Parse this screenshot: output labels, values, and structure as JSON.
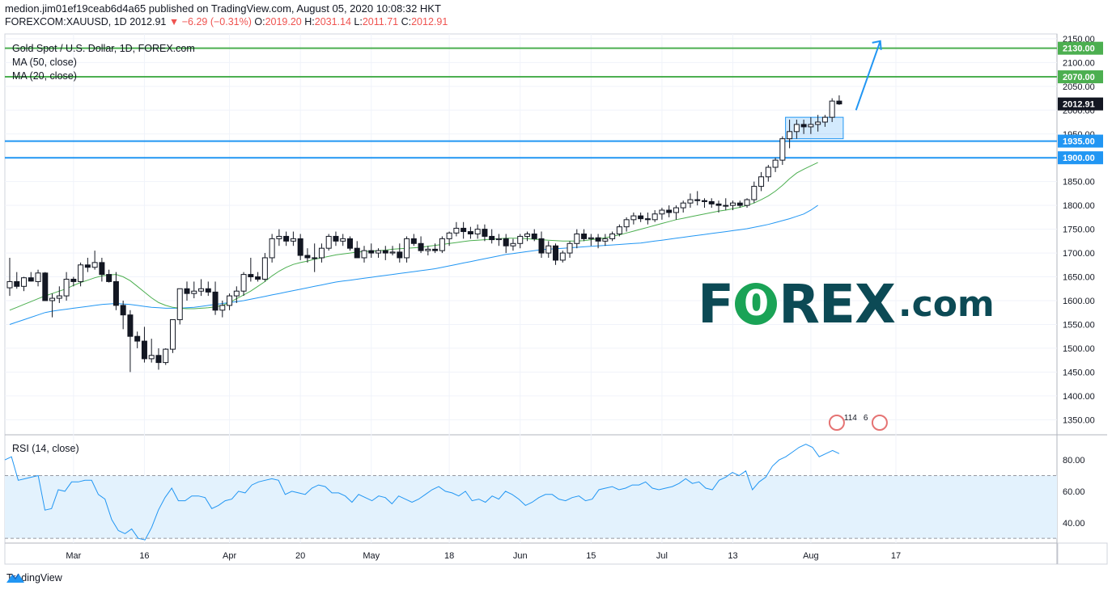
{
  "header": {
    "published": "medion.jim01ef19ceab6d4a65 published on TradingView.com, August 05, 2020 10:08:32 HKT",
    "symbol": "FOREXCOM:XAUUSD, 1D",
    "price": "2012.91",
    "change": "▼ −6.29 (−0.31%)",
    "o_label": "O:",
    "o_value": "2019.20",
    "h_label": "H:",
    "h_value": "2031.14",
    "l_label": "L:",
    "l_value": "2011.71",
    "c_label": "C:",
    "c_value": "2012.91"
  },
  "legend": {
    "title": "Gold Spot / U.S. Dollar, 1D, FOREX.com",
    "ma50": "MA (50, close)",
    "ma20": "MA (20, close)"
  },
  "rsi_label": "RSI (14, close)",
  "watermark": {
    "brand_left": "F",
    "brand_o": "0",
    "brand_right": "REX",
    "brand_suffix": ".com"
  },
  "footer": {
    "brand": "TradingView"
  },
  "event_badges": {
    "left_count": "114",
    "right_count": "6"
  },
  "colors": {
    "up": "#ffffff",
    "down": "#131722",
    "ma50": "#2196f3",
    "ma20": "#4caf50",
    "support": "#2196f3",
    "resistance": "#4caf50",
    "rsi": "#2196f3",
    "rsi_band": "#e3f2fd"
  },
  "chart_data": [
    {
      "type": "candlestick",
      "title": "Gold Spot / U.S. Dollar, 1D, FOREX.com",
      "ylim": [
        1320,
        2160
      ],
      "y_ticks": [
        1350,
        1400,
        1450,
        1500,
        1550,
        1600,
        1650,
        1700,
        1750,
        1800,
        1850,
        1900,
        1950,
        2000,
        2050,
        2100,
        2150
      ],
      "y_tick_labels": [
        "1350.00",
        "1400.00",
        "1450.00",
        "1500.00",
        "1550.00",
        "1600.00",
        "1650.00",
        "1700.00",
        "1750.00",
        "1800.00",
        "1850.00",
        "1900.00",
        "1950.00",
        "2000.00",
        "2050.00",
        "2100.00",
        "2150.00"
      ],
      "x_tick_labels": [
        "Mar",
        "16",
        "Apr",
        "20",
        "May",
        "18",
        "Jun",
        "15",
        "Jul",
        "13",
        "Aug",
        "17"
      ],
      "x_tick_index": [
        9,
        19,
        31,
        41,
        51,
        62,
        72,
        82,
        92,
        102,
        113,
        125
      ],
      "candles": [
        [
          1627,
          1690,
          1610,
          1640
        ],
        [
          1640,
          1660,
          1625,
          1630
        ],
        [
          1630,
          1650,
          1620,
          1648
        ],
        [
          1648,
          1660,
          1640,
          1641
        ],
        [
          1640,
          1665,
          1630,
          1658
        ],
        [
          1658,
          1660,
          1600,
          1600
        ],
        [
          1600,
          1615,
          1565,
          1605
        ],
        [
          1605,
          1630,
          1595,
          1610
        ],
        [
          1610,
          1660,
          1600,
          1645
        ],
        [
          1645,
          1650,
          1630,
          1640
        ],
        [
          1640,
          1680,
          1630,
          1675
        ],
        [
          1675,
          1690,
          1660,
          1670
        ],
        [
          1670,
          1705,
          1665,
          1680
        ],
        [
          1680,
          1690,
          1640,
          1655
        ],
        [
          1655,
          1665,
          1638,
          1640
        ],
        [
          1640,
          1660,
          1580,
          1590
        ],
        [
          1590,
          1600,
          1540,
          1570
        ],
        [
          1570,
          1580,
          1450,
          1525
        ],
        [
          1525,
          1535,
          1500,
          1515
        ],
        [
          1515,
          1545,
          1470,
          1478
        ],
        [
          1478,
          1520,
          1470,
          1485
        ],
        [
          1485,
          1500,
          1455,
          1470
        ],
        [
          1470,
          1500,
          1465,
          1498
        ],
        [
          1498,
          1560,
          1490,
          1560
        ],
        [
          1560,
          1625,
          1550,
          1625
        ],
        [
          1625,
          1640,
          1600,
          1615
        ],
        [
          1615,
          1640,
          1605,
          1620
        ],
        [
          1620,
          1645,
          1610,
          1625
        ],
        [
          1625,
          1640,
          1610,
          1618
        ],
        [
          1618,
          1640,
          1570,
          1580
        ],
        [
          1580,
          1600,
          1565,
          1590
        ],
        [
          1590,
          1615,
          1580,
          1610
        ],
        [
          1610,
          1630,
          1595,
          1620
        ],
        [
          1620,
          1660,
          1610,
          1655
        ],
        [
          1655,
          1690,
          1640,
          1650
        ],
        [
          1650,
          1660,
          1640,
          1645
        ],
        [
          1645,
          1700,
          1640,
          1690
        ],
        [
          1690,
          1740,
          1680,
          1730
        ],
        [
          1730,
          1750,
          1715,
          1735
        ],
        [
          1735,
          1745,
          1715,
          1725
        ],
        [
          1725,
          1745,
          1715,
          1730
        ],
        [
          1730,
          1740,
          1685,
          1695
        ],
        [
          1695,
          1710,
          1680,
          1690
        ],
        [
          1690,
          1720,
          1660,
          1690
        ],
        [
          1690,
          1720,
          1680,
          1710
        ],
        [
          1710,
          1740,
          1705,
          1735
        ],
        [
          1735,
          1745,
          1715,
          1725
        ],
        [
          1725,
          1740,
          1715,
          1730
        ],
        [
          1730,
          1735,
          1705,
          1710
        ],
        [
          1710,
          1725,
          1690,
          1690
        ],
        [
          1690,
          1715,
          1680,
          1705
        ],
        [
          1705,
          1720,
          1690,
          1700
        ],
        [
          1700,
          1710,
          1690,
          1705
        ],
        [
          1705,
          1715,
          1685,
          1700
        ],
        [
          1700,
          1715,
          1695,
          1702
        ],
        [
          1702,
          1720,
          1680,
          1690
        ],
        [
          1690,
          1735,
          1680,
          1730
        ],
        [
          1730,
          1740,
          1715,
          1720
        ],
        [
          1720,
          1735,
          1700,
          1705
        ],
        [
          1705,
          1715,
          1695,
          1708
        ],
        [
          1708,
          1720,
          1700,
          1705
        ],
        [
          1705,
          1735,
          1700,
          1730
        ],
        [
          1730,
          1745,
          1715,
          1742
        ],
        [
          1742,
          1765,
          1735,
          1752
        ],
        [
          1752,
          1765,
          1730,
          1745
        ],
        [
          1745,
          1755,
          1730,
          1740
        ],
        [
          1740,
          1760,
          1730,
          1750
        ],
        [
          1750,
          1760,
          1725,
          1735
        ],
        [
          1735,
          1750,
          1720,
          1728
        ],
        [
          1728,
          1740,
          1715,
          1730
        ],
        [
          1730,
          1740,
          1700,
          1715
        ],
        [
          1715,
          1730,
          1705,
          1720
        ],
        [
          1720,
          1740,
          1710,
          1735
        ],
        [
          1735,
          1745,
          1725,
          1740
        ],
        [
          1740,
          1750,
          1725,
          1730
        ],
        [
          1730,
          1745,
          1690,
          1700
        ],
        [
          1700,
          1725,
          1690,
          1715
        ],
        [
          1715,
          1720,
          1675,
          1685
        ],
        [
          1685,
          1705,
          1680,
          1700
        ],
        [
          1700,
          1725,
          1690,
          1720
        ],
        [
          1720,
          1750,
          1710,
          1740
        ],
        [
          1740,
          1750,
          1725,
          1730
        ],
        [
          1730,
          1740,
          1715,
          1732
        ],
        [
          1732,
          1740,
          1710,
          1725
        ],
        [
          1725,
          1740,
          1715,
          1730
        ],
        [
          1730,
          1745,
          1725,
          1740
        ],
        [
          1740,
          1760,
          1735,
          1755
        ],
        [
          1755,
          1775,
          1745,
          1770
        ],
        [
          1770,
          1785,
          1760,
          1778
        ],
        [
          1778,
          1785,
          1765,
          1772
        ],
        [
          1772,
          1785,
          1760,
          1770
        ],
        [
          1770,
          1790,
          1765,
          1782
        ],
        [
          1782,
          1795,
          1770,
          1790
        ],
        [
          1790,
          1800,
          1775,
          1785
        ],
        [
          1785,
          1800,
          1770,
          1795
        ],
        [
          1795,
          1810,
          1785,
          1805
        ],
        [
          1805,
          1825,
          1795,
          1812
        ],
        [
          1812,
          1830,
          1800,
          1810
        ],
        [
          1810,
          1815,
          1795,
          1808
        ],
        [
          1808,
          1815,
          1795,
          1803
        ],
        [
          1803,
          1810,
          1785,
          1800
        ],
        [
          1800,
          1815,
          1790,
          1800
        ],
        [
          1800,
          1810,
          1790,
          1805
        ],
        [
          1805,
          1810,
          1795,
          1800
        ],
        [
          1800,
          1815,
          1795,
          1812
        ],
        [
          1812,
          1850,
          1805,
          1840
        ],
        [
          1840,
          1870,
          1830,
          1860
        ],
        [
          1860,
          1885,
          1850,
          1880
        ],
        [
          1880,
          1900,
          1870,
          1895
        ],
        [
          1895,
          1945,
          1885,
          1940
        ],
        [
          1940,
          1980,
          1920,
          1955
        ],
        [
          1955,
          1980,
          1940,
          1970
        ],
        [
          1970,
          1980,
          1950,
          1965
        ],
        [
          1965,
          1985,
          1950,
          1970
        ],
        [
          1970,
          1990,
          1955,
          1975
        ],
        [
          1975,
          1990,
          1965,
          1985
        ],
        [
          1985,
          2025,
          1975,
          2019
        ],
        [
          2019,
          2031,
          2011,
          2013
        ]
      ]
    },
    {
      "type": "line",
      "name": "MA (20, close)",
      "color": "#4caf50",
      "values": [
        1580,
        1586,
        1592,
        1598,
        1604,
        1610,
        1615,
        1620,
        1625,
        1632,
        1638,
        1643,
        1648,
        1652,
        1654,
        1655,
        1650,
        1642,
        1630,
        1618,
        1606,
        1596,
        1590,
        1586,
        1584,
        1583,
        1583,
        1584,
        1585,
        1587,
        1590,
        1596,
        1604,
        1612,
        1620,
        1630,
        1640,
        1652,
        1662,
        1670,
        1676,
        1680,
        1683,
        1687,
        1690,
        1693,
        1696,
        1698,
        1700,
        1702,
        1703,
        1704,
        1705,
        1706,
        1708,
        1709,
        1710,
        1711,
        1712,
        1714,
        1716,
        1718,
        1720,
        1722,
        1724,
        1726,
        1727,
        1728,
        1729,
        1730,
        1731,
        1731,
        1731,
        1730,
        1729,
        1728,
        1727,
        1726,
        1725,
        1725,
        1725,
        1726,
        1728,
        1730,
        1732,
        1735,
        1738,
        1742,
        1746,
        1750,
        1754,
        1758,
        1762,
        1766,
        1770,
        1773,
        1776,
        1779,
        1782,
        1785,
        1788,
        1790,
        1793,
        1796,
        1800,
        1805,
        1812,
        1820,
        1830,
        1842,
        1856,
        1868,
        1876,
        1883,
        1890
      ]
    },
    {
      "type": "line",
      "name": "MA (50, close)",
      "color": "#2196f3",
      "values": [
        1550,
        1555,
        1560,
        1565,
        1570,
        1575,
        1578,
        1580,
        1582,
        1584,
        1586,
        1588,
        1590,
        1592,
        1593,
        1594,
        1593,
        1592,
        1590,
        1588,
        1586,
        1585,
        1584,
        1584,
        1584,
        1585,
        1586,
        1588,
        1590,
        1592,
        1594,
        1596,
        1598,
        1600,
        1603,
        1606,
        1609,
        1612,
        1615,
        1618,
        1621,
        1624,
        1627,
        1630,
        1633,
        1636,
        1639,
        1641,
        1643,
        1645,
        1647,
        1649,
        1651,
        1653,
        1655,
        1657,
        1659,
        1661,
        1663,
        1665,
        1667,
        1670,
        1673,
        1676,
        1679,
        1682,
        1685,
        1688,
        1691,
        1694,
        1697,
        1699,
        1701,
        1703,
        1705,
        1707,
        1708,
        1709,
        1710,
        1711,
        1712,
        1713,
        1714,
        1715,
        1716,
        1717,
        1718,
        1719,
        1720,
        1721,
        1723,
        1725,
        1727,
        1729,
        1731,
        1733,
        1735,
        1737,
        1739,
        1741,
        1743,
        1745,
        1747,
        1749,
        1751,
        1754,
        1757,
        1760,
        1764,
        1768,
        1772,
        1777,
        1782,
        1790,
        1800
      ]
    },
    {
      "type": "line",
      "name": "RSI (14, close)",
      "ylim": [
        27,
        96
      ],
      "y_ticks": [
        40,
        60,
        80
      ],
      "y_tick_labels": [
        "40.00",
        "60.00",
        "80.00"
      ],
      "band": [
        30,
        70
      ],
      "values": [
        80,
        82,
        67,
        68,
        69,
        70,
        48,
        49,
        61,
        60,
        66,
        66,
        67,
        67,
        58,
        55,
        42,
        35,
        33,
        36,
        30,
        29,
        37,
        48,
        56,
        62,
        54,
        54,
        57,
        57,
        56,
        49,
        51,
        54,
        55,
        60,
        59,
        64,
        66,
        67,
        68,
        67,
        58,
        60,
        59,
        58,
        62,
        64,
        63,
        59,
        59,
        57,
        53,
        58,
        56,
        54,
        57,
        56,
        52,
        57,
        55,
        53,
        55,
        58,
        61,
        63,
        60,
        59,
        57,
        60,
        54,
        55,
        53,
        57,
        55,
        60,
        58,
        55,
        51,
        53,
        56,
        58,
        58,
        55,
        54,
        56,
        57,
        54,
        55,
        61,
        62,
        63,
        61,
        62,
        64,
        64,
        66,
        62,
        61,
        62,
        63,
        65,
        68,
        65,
        66,
        62,
        61,
        67,
        69,
        72,
        70,
        73,
        61,
        66,
        69,
        76,
        80,
        82,
        85,
        88,
        90,
        88,
        82,
        84,
        86,
        84
      ]
    }
  ]
}
